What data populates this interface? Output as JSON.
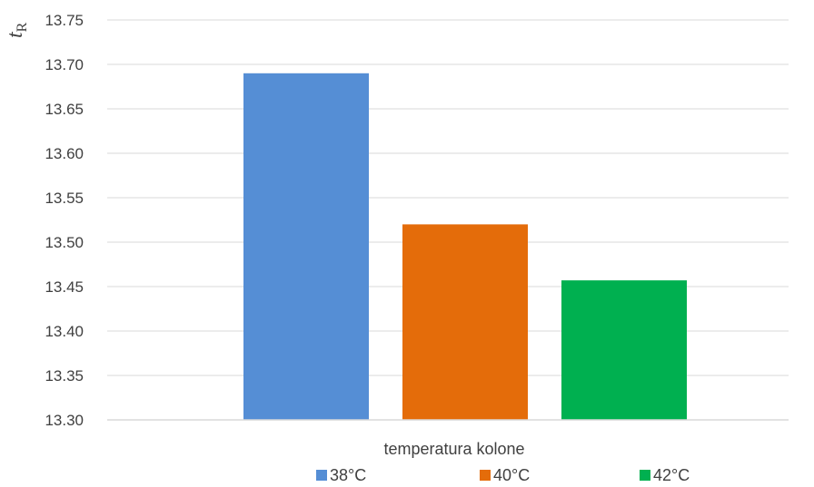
{
  "chart_data": {
    "type": "bar",
    "title": "",
    "xlabel": "temperatura kolone",
    "ylabel": "t",
    "ylabel_subscript": "R",
    "ylim": [
      13.3,
      13.75
    ],
    "yticks": [
      "13.30",
      "13.35",
      "13.40",
      "13.45",
      "13.50",
      "13.55",
      "13.60",
      "13.65",
      "13.70",
      "13.75"
    ],
    "grid": true,
    "legend_position": "bottom",
    "series": [
      {
        "name": "38°C",
        "value": 13.69,
        "color": "#558ED5"
      },
      {
        "name": "40°C",
        "value": 13.52,
        "color": "#E46C0A"
      },
      {
        "name": "42°C",
        "value": 13.457,
        "color": "#00B050"
      }
    ]
  }
}
